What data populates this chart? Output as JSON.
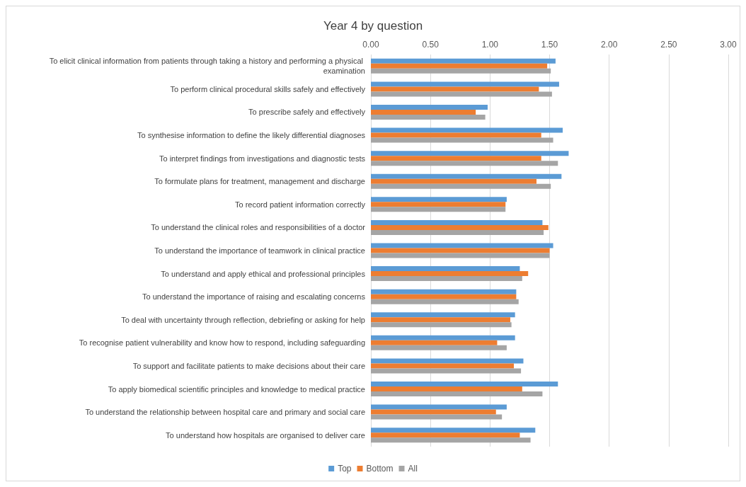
{
  "chart_data": {
    "type": "bar",
    "orientation": "horizontal",
    "title": "Year 4 by question",
    "categories": [
      "To elicit clinical information from patients through taking a history and performing a physical examination",
      "To perform clinical procedural skills safely and effectively",
      "To prescribe safely and effectively",
      "To synthesise information to define the likely differential diagnoses",
      "To interpret findings from investigations and diagnostic tests",
      "To formulate plans for treatment, management and discharge",
      "To record patient information correctly",
      "To understand the clinical roles and responsibilities of a doctor",
      "To understand the importance of teamwork in clinical practice",
      "To understand and apply ethical and professional principles",
      "To understand the importance of raising and escalating concerns",
      "To deal with uncertainty through reflection, debriefing or asking for help",
      "To recognise patient vulnerability and know how to respond, including safeguarding",
      "To support and facilitate patients to make decisions about their care",
      "To apply biomedical scientific principles and knowledge to medical practice",
      "To understand the relationship between hospital care and primary and social care",
      "To understand how hospitals are organised to deliver care"
    ],
    "series": [
      {
        "name": "Top",
        "color": "#5b9bd5",
        "values": [
          1.55,
          1.58,
          0.98,
          1.61,
          1.66,
          1.6,
          1.14,
          1.44,
          1.53,
          1.25,
          1.22,
          1.21,
          1.21,
          1.28,
          1.57,
          1.14,
          1.38
        ]
      },
      {
        "name": "Bottom",
        "color": "#ed7d31",
        "values": [
          1.48,
          1.41,
          0.88,
          1.43,
          1.43,
          1.39,
          1.13,
          1.49,
          1.5,
          1.32,
          1.22,
          1.17,
          1.06,
          1.2,
          1.27,
          1.05,
          1.25
        ]
      },
      {
        "name": "All",
        "color": "#a5a5a5",
        "values": [
          1.51,
          1.52,
          0.96,
          1.53,
          1.57,
          1.51,
          1.13,
          1.45,
          1.5,
          1.27,
          1.24,
          1.18,
          1.14,
          1.26,
          1.44,
          1.1,
          1.34
        ]
      }
    ],
    "xlim": [
      0,
      3
    ],
    "xticks": [
      {
        "value": 0,
        "label": "0.00"
      },
      {
        "value": 0.5,
        "label": "0.50"
      },
      {
        "value": 1,
        "label": "1.00"
      },
      {
        "value": 1.5,
        "label": "1.50"
      },
      {
        "value": 2,
        "label": "2.00"
      },
      {
        "value": 2.5,
        "label": "2.50"
      },
      {
        "value": 3,
        "label": "3.00"
      }
    ],
    "grid": "x",
    "legend": "bottom"
  }
}
